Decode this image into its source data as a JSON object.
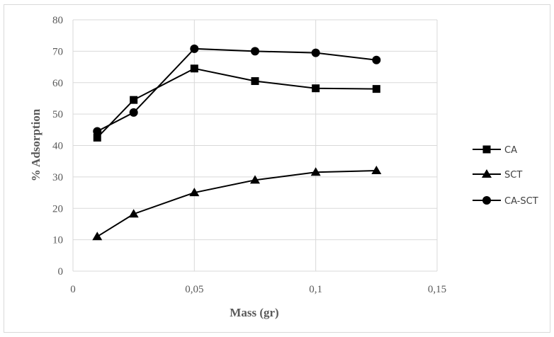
{
  "chart_data": {
    "type": "line",
    "title": "",
    "xlabel": "Mass (gr)",
    "ylabel": "% Adsorption",
    "xlim": [
      0,
      0.15
    ],
    "ylim": [
      0,
      80
    ],
    "x_ticks": [
      "0",
      "0,05",
      "0,1",
      "0,15"
    ],
    "y_ticks": [
      "0",
      "10",
      "20",
      "30",
      "40",
      "50",
      "60",
      "70",
      "80"
    ],
    "grid": true,
    "legend_position": "right",
    "series": [
      {
        "name": "CA",
        "marker": "square",
        "x": [
          0.01,
          0.025,
          0.05,
          0.075,
          0.1,
          0.125
        ],
        "y": [
          42.5,
          54.5,
          64.5,
          60.5,
          58.2,
          58.0
        ]
      },
      {
        "name": "SCT",
        "marker": "triangle",
        "x": [
          0.01,
          0.025,
          0.05,
          0.075,
          0.1,
          0.125
        ],
        "y": [
          11.0,
          18.2,
          25.0,
          29.0,
          31.5,
          32.0
        ]
      },
      {
        "name": "CA-SCT",
        "marker": "circle",
        "x": [
          0.01,
          0.025,
          0.05,
          0.075,
          0.1,
          0.125
        ],
        "y": [
          44.5,
          50.5,
          70.8,
          70.0,
          69.5,
          67.2
        ]
      }
    ],
    "colors": {
      "line": "#000000",
      "grid": "#d9d9d9",
      "text": "#595959"
    }
  }
}
